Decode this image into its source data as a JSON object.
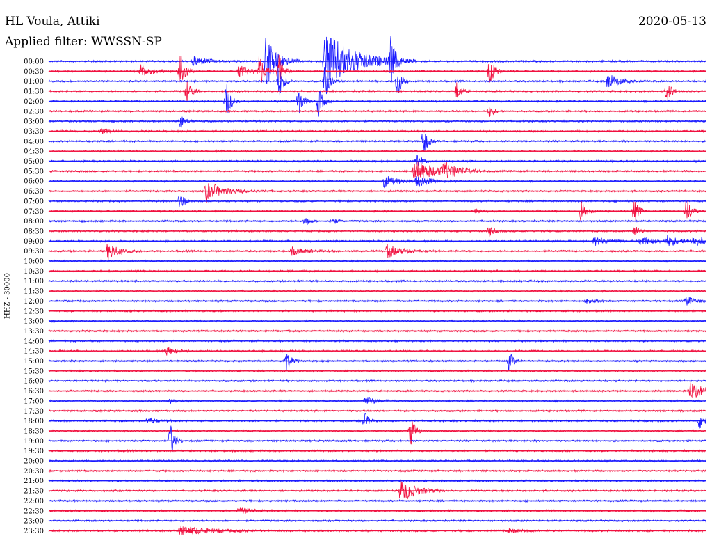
{
  "header": {
    "station": "HL Voula, Attiki",
    "date": "2020-05-13",
    "filter_label": "Applied filter: WWSSN-SP"
  },
  "axis": {
    "vertical_label": "HHZ - 30000"
  },
  "colors": {
    "even": "#1a1aff",
    "odd": "#f0103f",
    "text": "#000000"
  },
  "chart_data": {
    "type": "helicorder",
    "title": "HL Voula, Attiki",
    "date": "2020-05-13",
    "filter": "WWSSN-SP",
    "channel_label": "HHZ - 30000",
    "rows": [
      "00:00",
      "00:30",
      "01:00",
      "01:30",
      "02:00",
      "02:30",
      "03:00",
      "03:30",
      "04:00",
      "04:30",
      "05:00",
      "05:30",
      "06:00",
      "06:30",
      "07:00",
      "07:30",
      "08:00",
      "08:30",
      "09:00",
      "09:30",
      "10:00",
      "10:30",
      "11:00",
      "11:30",
      "12:00",
      "12:30",
      "13:00",
      "13:30",
      "14:00",
      "14:30",
      "15:00",
      "15:30",
      "16:00",
      "16:30",
      "17:00",
      "17:30",
      "18:00",
      "18:30",
      "19:00",
      "19:30",
      "20:00",
      "20:30",
      "21:00",
      "21:30",
      "22:00",
      "22:30",
      "23:00",
      "23:30"
    ],
    "row_duration_minutes": 30,
    "events": [
      {
        "row": 0,
        "t": 0.22,
        "amp": 0.5,
        "dur": 0.02
      },
      {
        "row": 0,
        "t": 0.33,
        "amp": 3.0,
        "dur": 0.015
      },
      {
        "row": 0,
        "t": 0.42,
        "amp": 3.3,
        "dur": 0.04
      },
      {
        "row": 0,
        "t": 0.52,
        "amp": 2.5,
        "dur": 0.006
      },
      {
        "row": 1,
        "t": 0.14,
        "amp": 0.7,
        "dur": 0.015
      },
      {
        "row": 1,
        "t": 0.2,
        "amp": 2.5,
        "dur": 0.006
      },
      {
        "row": 1,
        "t": 0.29,
        "amp": 0.6,
        "dur": 0.015
      },
      {
        "row": 1,
        "t": 0.32,
        "amp": 2.2,
        "dur": 0.006
      },
      {
        "row": 1,
        "t": 0.35,
        "amp": 1.8,
        "dur": 0.006
      },
      {
        "row": 1,
        "t": 0.67,
        "amp": 2.0,
        "dur": 0.006
      },
      {
        "row": 2,
        "t": 0.35,
        "amp": 2.0,
        "dur": 0.006
      },
      {
        "row": 2,
        "t": 0.42,
        "amp": 2.0,
        "dur": 0.006
      },
      {
        "row": 2,
        "t": 0.53,
        "amp": 1.8,
        "dur": 0.006
      },
      {
        "row": 2,
        "t": 0.85,
        "amp": 0.9,
        "dur": 0.015
      },
      {
        "row": 3,
        "t": 0.21,
        "amp": 1.3,
        "dur": 0.006
      },
      {
        "row": 3,
        "t": 0.62,
        "amp": 0.9,
        "dur": 0.006
      },
      {
        "row": 3,
        "t": 0.94,
        "amp": 1.2,
        "dur": 0.006
      },
      {
        "row": 4,
        "t": 0.27,
        "amp": 2.0,
        "dur": 0.006
      },
      {
        "row": 4,
        "t": 0.38,
        "amp": 1.6,
        "dur": 0.006
      },
      {
        "row": 4,
        "t": 0.41,
        "amp": 1.6,
        "dur": 0.006
      },
      {
        "row": 5,
        "t": 0.67,
        "amp": 0.6,
        "dur": 0.006
      },
      {
        "row": 6,
        "t": 0.2,
        "amp": 0.8,
        "dur": 0.006
      },
      {
        "row": 7,
        "t": 0.08,
        "amp": 0.3,
        "dur": 0.01
      },
      {
        "row": 8,
        "t": 0.57,
        "amp": 1.5,
        "dur": 0.006
      },
      {
        "row": 10,
        "t": 0.56,
        "amp": 1.0,
        "dur": 0.006
      },
      {
        "row": 11,
        "t": 0.555,
        "amp": 1.2,
        "dur": 0.03
      },
      {
        "row": 11,
        "t": 0.6,
        "amp": 0.8,
        "dur": 0.02
      },
      {
        "row": 12,
        "t": 0.51,
        "amp": 0.6,
        "dur": 0.02
      },
      {
        "row": 12,
        "t": 0.56,
        "amp": 0.5,
        "dur": 0.02
      },
      {
        "row": 13,
        "t": 0.24,
        "amp": 1.2,
        "dur": 0.006
      },
      {
        "row": 13,
        "t": 0.25,
        "amp": 0.5,
        "dur": 0.03
      },
      {
        "row": 14,
        "t": 0.2,
        "amp": 1.0,
        "dur": 0.006
      },
      {
        "row": 15,
        "t": 0.65,
        "amp": 0.3,
        "dur": 0.01
      },
      {
        "row": 15,
        "t": 0.81,
        "amp": 1.4,
        "dur": 0.006
      },
      {
        "row": 15,
        "t": 0.89,
        "amp": 1.3,
        "dur": 0.006
      },
      {
        "row": 15,
        "t": 0.97,
        "amp": 1.5,
        "dur": 0.006
      },
      {
        "row": 16,
        "t": 0.39,
        "amp": 0.6,
        "dur": 0.006
      },
      {
        "row": 16,
        "t": 0.43,
        "amp": 0.5,
        "dur": 0.006
      },
      {
        "row": 17,
        "t": 0.67,
        "amp": 0.6,
        "dur": 0.006
      },
      {
        "row": 17,
        "t": 0.89,
        "amp": 0.7,
        "dur": 0.006
      },
      {
        "row": 18,
        "t": 0.83,
        "amp": 0.4,
        "dur": 0.02
      },
      {
        "row": 18,
        "t": 0.9,
        "amp": 0.5,
        "dur": 0.02
      },
      {
        "row": 18,
        "t": 0.94,
        "amp": 0.5,
        "dur": 0.02
      },
      {
        "row": 18,
        "t": 0.98,
        "amp": 0.5,
        "dur": 0.02
      },
      {
        "row": 19,
        "t": 0.09,
        "amp": 0.9,
        "dur": 0.015
      },
      {
        "row": 19,
        "t": 0.37,
        "amp": 0.4,
        "dur": 0.02
      },
      {
        "row": 19,
        "t": 0.515,
        "amp": 0.7,
        "dur": 0.02
      },
      {
        "row": 24,
        "t": 0.82,
        "amp": 0.3,
        "dur": 0.01
      },
      {
        "row": 24,
        "t": 0.97,
        "amp": 0.5,
        "dur": 0.01
      },
      {
        "row": 29,
        "t": 0.18,
        "amp": 0.5,
        "dur": 0.01
      },
      {
        "row": 30,
        "t": 0.36,
        "amp": 1.4,
        "dur": 0.006
      },
      {
        "row": 30,
        "t": 0.7,
        "amp": 1.0,
        "dur": 0.006
      },
      {
        "row": 33,
        "t": 0.975,
        "amp": 0.9,
        "dur": 0.02
      },
      {
        "row": 34,
        "t": 0.185,
        "amp": 0.3,
        "dur": 0.006
      },
      {
        "row": 34,
        "t": 0.48,
        "amp": 0.5,
        "dur": 0.015
      },
      {
        "row": 36,
        "t": 0.15,
        "amp": 0.3,
        "dur": 0.015
      },
      {
        "row": 36,
        "t": 0.48,
        "amp": 0.9,
        "dur": 0.006
      },
      {
        "row": 36,
        "t": 0.99,
        "amp": 1.0,
        "dur": 0.006
      },
      {
        "row": 37,
        "t": 0.55,
        "amp": 1.7,
        "dur": 0.006
      },
      {
        "row": 38,
        "t": 0.185,
        "amp": 1.9,
        "dur": 0.006
      },
      {
        "row": 43,
        "t": 0.535,
        "amp": 1.3,
        "dur": 0.02
      },
      {
        "row": 45,
        "t": 0.29,
        "amp": 0.4,
        "dur": 0.015
      },
      {
        "row": 47,
        "t": 0.2,
        "amp": 0.5,
        "dur": 0.04
      },
      {
        "row": 47,
        "t": 0.7,
        "amp": 0.2,
        "dur": 0.02
      }
    ]
  }
}
